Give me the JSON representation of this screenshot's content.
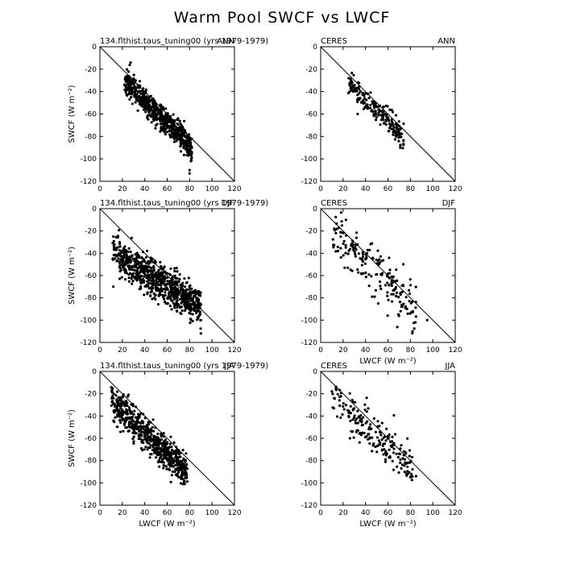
{
  "title": "Warm Pool SWCF vs LWCF",
  "chart_data": [
    {
      "type": "scatter",
      "panel_left": "134.flthist.taus_tuning00 (yrs 1979-1979)",
      "panel_right": "ANN",
      "xlabel": "",
      "ylabel": "SWCF (W m⁻²)",
      "xlim": [
        0,
        120
      ],
      "ylim": [
        -120,
        0
      ],
      "xticks": [
        0,
        20,
        40,
        60,
        80,
        100,
        120
      ],
      "yticks": [
        0,
        -20,
        -40,
        -60,
        -80,
        -100,
        -120
      ],
      "reference_line": [
        [
          0,
          0
        ],
        [
          120,
          -120
        ]
      ],
      "cluster": {
        "x_range": [
          22,
          82
        ],
        "center_slope": -1.0,
        "intercept": -8,
        "spread": 6,
        "count": 650,
        "seed": 11
      },
      "extremes": [
        [
          80,
          -113
        ],
        [
          80,
          -110
        ],
        [
          23,
          -30
        ],
        [
          28,
          -30
        ]
      ]
    },
    {
      "type": "scatter",
      "panel_left": "CERES",
      "panel_right": "ANN",
      "xlabel": "",
      "ylabel": "",
      "xlim": [
        0,
        120
      ],
      "ylim": [
        -120,
        0
      ],
      "xticks": [
        0,
        20,
        40,
        60,
        80,
        100,
        120
      ],
      "yticks": [
        0,
        -20,
        -40,
        -60,
        -80,
        -100,
        -120
      ],
      "reference_line": [
        [
          0,
          0
        ],
        [
          120,
          -120
        ]
      ],
      "cluster": {
        "x_range": [
          24,
          74
        ],
        "center_slope": -1.0,
        "intercept": -6,
        "spread": 5,
        "count": 200,
        "seed": 23
      },
      "extremes": [
        [
          71,
          -90
        ],
        [
          25,
          -28
        ],
        [
          33,
          -60
        ]
      ]
    },
    {
      "type": "scatter",
      "panel_left": "134.flthist.taus_tuning00 (yrs 1979-1979)",
      "panel_right": "DJF",
      "xlabel": "",
      "ylabel": "SWCF (W m⁻²)",
      "xlim": [
        0,
        120
      ],
      "ylim": [
        -120,
        0
      ],
      "xticks": [
        0,
        20,
        40,
        60,
        80,
        100,
        120
      ],
      "yticks": [
        0,
        -20,
        -40,
        -60,
        -80,
        -100,
        -120
      ],
      "reference_line": [
        [
          0,
          0
        ],
        [
          120,
          -120
        ]
      ],
      "cluster": {
        "x_range": [
          11,
          90
        ],
        "center_slope": -0.62,
        "intercept": -33,
        "spread": 8,
        "count": 800,
        "seed": 37
      },
      "extremes": [
        [
          12,
          -70
        ],
        [
          12,
          -25
        ],
        [
          90,
          -112
        ],
        [
          90,
          -100
        ]
      ]
    },
    {
      "type": "scatter",
      "panel_left": "CERES",
      "panel_right": "DJF",
      "xlabel": "LWCF (W m⁻²)",
      "ylabel": "",
      "xlim": [
        0,
        120
      ],
      "ylim": [
        -120,
        0
      ],
      "xticks": [
        0,
        20,
        40,
        60,
        80,
        100,
        120
      ],
      "yticks": [
        0,
        -20,
        -40,
        -60,
        -80,
        -100,
        -120
      ],
      "reference_line": [
        [
          0,
          0
        ],
        [
          120,
          -120
        ]
      ],
      "cluster": {
        "x_range": [
          10,
          85
        ],
        "center_slope": -0.95,
        "intercept": -10,
        "spread": 11,
        "count": 190,
        "seed": 53
      },
      "extremes": [
        [
          12,
          -18
        ],
        [
          82,
          -110
        ],
        [
          95,
          -100
        ]
      ]
    },
    {
      "type": "scatter",
      "panel_left": "134.flthist.taus_tuning00 (yrs 1979-1979)",
      "panel_right": "JJA",
      "xlabel": "LWCF (W m⁻²)",
      "ylabel": "SWCF (W m⁻²)",
      "xlim": [
        0,
        120
      ],
      "ylim": [
        -120,
        0
      ],
      "xticks": [
        0,
        20,
        40,
        60,
        80,
        100,
        120
      ],
      "yticks": [
        0,
        -20,
        -40,
        -60,
        -80,
        -100,
        -120
      ],
      "reference_line": [
        [
          0,
          0
        ],
        [
          120,
          -120
        ]
      ],
      "cluster": {
        "x_range": [
          10,
          78
        ],
        "center_slope": -0.95,
        "intercept": -17,
        "spread": 7,
        "count": 650,
        "seed": 71
      },
      "extremes": [
        [
          11,
          -16
        ],
        [
          74,
          -101
        ],
        [
          75,
          -99
        ]
      ]
    },
    {
      "type": "scatter",
      "panel_left": "CERES",
      "panel_right": "JJA",
      "xlabel": "LWCF (W m⁻²)",
      "ylabel": "",
      "xlim": [
        0,
        120
      ],
      "ylim": [
        -120,
        0
      ],
      "xticks": [
        0,
        20,
        40,
        60,
        80,
        100,
        120
      ],
      "yticks": [
        0,
        -20,
        -40,
        -60,
        -80,
        -100,
        -120
      ],
      "reference_line": [
        [
          0,
          0
        ],
        [
          120,
          -120
        ]
      ],
      "cluster": {
        "x_range": [
          10,
          82
        ],
        "center_slope": -0.9,
        "intercept": -14,
        "spread": 9,
        "count": 200,
        "seed": 89
      },
      "extremes": [
        [
          10,
          -18
        ],
        [
          80,
          -95
        ],
        [
          85,
          -94
        ]
      ]
    }
  ]
}
